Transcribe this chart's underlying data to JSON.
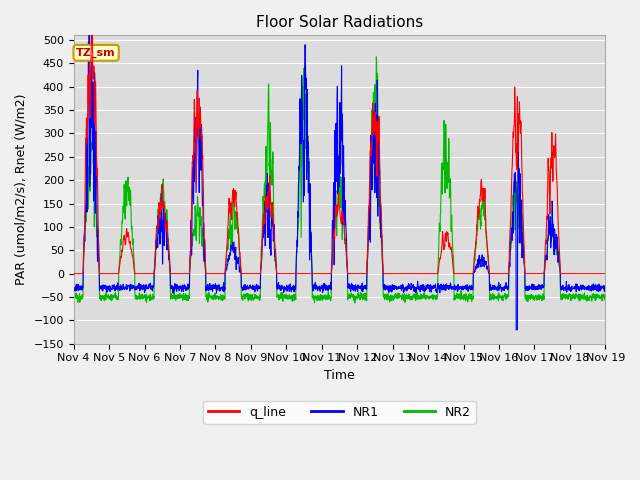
{
  "title": "Floor Solar Radiations",
  "xlabel": "Time",
  "ylabel": "PAR (umol/m2/s), Rnet (W/m2)",
  "ylim": [
    -150,
    510
  ],
  "yticks": [
    -150,
    -100,
    -50,
    0,
    50,
    100,
    150,
    200,
    250,
    300,
    350,
    400,
    450,
    500
  ],
  "bg_color": "#dcdcdc",
  "fig_bg": "#f0f0f0",
  "annotation_text": "TZ_sm",
  "annotation_bg": "#ffffcc",
  "annotation_border": "#cc9900",
  "line_colors": {
    "q_line": "#ff0000",
    "NR1": "#0000ff",
    "NR2": "#00bb00"
  },
  "line_width": 0.8,
  "num_days": 15,
  "start_day": 4,
  "points_per_day": 144,
  "title_fontsize": 11,
  "axis_fontsize": 9,
  "tick_fontsize": 8
}
